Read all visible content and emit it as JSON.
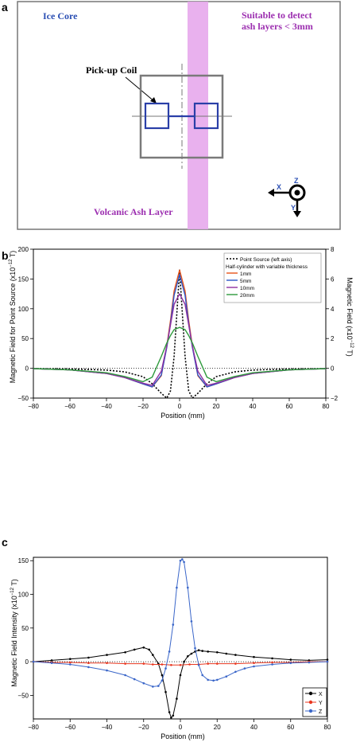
{
  "panel_labels": {
    "a": "a",
    "b": "b",
    "c": "c"
  },
  "diagram": {
    "ice_core_label": "Ice Core",
    "detect_note_line1": "Suitable to detect",
    "detect_note_line2": "ash layers < 3mm",
    "pickup_coil_label": "Pick-up Coil",
    "ash_layer_label": "Volcanic Ash Layer",
    "axis_x": "X",
    "axis_y": "Y",
    "axis_z": "Z",
    "colors": {
      "ice_core": "#2b4fb3",
      "ash": "#9c2fb0",
      "ash_band": "#e7a9ec",
      "coil": "#2a3fa8",
      "frame": "#777777"
    }
  },
  "chart_data": [
    {
      "type": "line",
      "xlabel": "Position (mm)",
      "ylabel_left": "Magnetic Field for Point Source (x10",
      "ylabel_left_exp": "−12",
      "ylabel_left_unit": "T)",
      "ylabel_right": "Magnetic Field (x10",
      "ylabel_right_exp": "−12",
      "ylabel_right_unit": "T)",
      "xlim": [
        -80,
        80
      ],
      "ylim_left": [
        -50,
        200
      ],
      "ylim_right": [
        -2,
        8
      ],
      "xticks": [
        "−80",
        "−60",
        "−40",
        "−20",
        "0",
        "20",
        "40",
        "60",
        "80"
      ],
      "yticks_left": [
        "−50",
        "0",
        "50",
        "100",
        "150",
        "200"
      ],
      "yticks_right": [
        "−2",
        "0",
        "2",
        "4",
        "6",
        "8"
      ],
      "legend": {
        "point_source": "Point Source (left axis)",
        "half_cylinder_header": "Half-cylinder with variable thickness",
        "placement": "top-right"
      },
      "series": [
        {
          "name": "Point Source (left axis)",
          "axis": "left",
          "color": "#000000",
          "style": "dotted",
          "x": [
            -80,
            -60,
            -40,
            -30,
            -20,
            -15,
            -10,
            -7,
            -5,
            -3,
            0,
            3,
            5,
            7,
            10,
            15,
            20,
            30,
            40,
            60,
            80
          ],
          "y": [
            -0.5,
            -1,
            -3,
            -6,
            -14,
            -26,
            -42,
            -50,
            -38,
            20,
            165,
            20,
            -38,
            -50,
            -42,
            -26,
            -14,
            -6,
            -3,
            -1,
            -0.5
          ]
        },
        {
          "name": "1mm",
          "axis": "right",
          "color": "#e8541a",
          "style": "solid",
          "x": [
            -80,
            -60,
            -40,
            -30,
            -20,
            -15,
            -10,
            -7,
            -5,
            -3,
            0,
            3,
            5,
            7,
            10,
            15,
            20,
            30,
            40,
            60,
            80
          ],
          "y": [
            -0.02,
            -0.1,
            -0.35,
            -0.62,
            -1.05,
            -1.25,
            -0.5,
            1.5,
            3.2,
            5.2,
            6.6,
            5.2,
            3.2,
            1.5,
            -0.5,
            -1.25,
            -1.05,
            -0.62,
            -0.35,
            -0.1,
            -0.02
          ]
        },
        {
          "name": "5mm",
          "axis": "right",
          "color": "#2b55c8",
          "style": "solid",
          "x": [
            -80,
            -60,
            -40,
            -30,
            -20,
            -15,
            -10,
            -7,
            -5,
            -3,
            0,
            3,
            5,
            7,
            10,
            15,
            20,
            30,
            40,
            60,
            80
          ],
          "y": [
            -0.02,
            -0.1,
            -0.35,
            -0.62,
            -1.05,
            -1.25,
            -0.45,
            1.4,
            3.0,
            4.9,
            6.3,
            4.9,
            3.0,
            1.4,
            -0.45,
            -1.25,
            -1.05,
            -0.62,
            -0.35,
            -0.1,
            -0.02
          ]
        },
        {
          "name": "10mm",
          "axis": "right",
          "color": "#8e2fa0",
          "style": "solid",
          "x": [
            -80,
            -60,
            -40,
            -30,
            -20,
            -15,
            -10,
            -7,
            -5,
            -3,
            0,
            3,
            5,
            7,
            10,
            15,
            20,
            30,
            40,
            60,
            80
          ],
          "y": [
            -0.02,
            -0.1,
            -0.35,
            -0.62,
            -1.0,
            -1.15,
            -0.2,
            1.5,
            2.9,
            4.3,
            5.0,
            4.3,
            2.9,
            1.5,
            -0.2,
            -1.15,
            -1.0,
            -0.62,
            -0.35,
            -0.1,
            -0.02
          ]
        },
        {
          "name": "20mm",
          "axis": "right",
          "color": "#2e9a3c",
          "style": "solid",
          "x": [
            -80,
            -60,
            -40,
            -30,
            -20,
            -15,
            -10,
            -7,
            -5,
            -3,
            0,
            3,
            5,
            7,
            10,
            15,
            20,
            30,
            40,
            60,
            80
          ],
          "y": [
            -0.02,
            -0.1,
            -0.3,
            -0.55,
            -0.9,
            -0.6,
            0.8,
            1.7,
            2.2,
            2.6,
            2.75,
            2.6,
            2.2,
            1.7,
            0.8,
            -0.6,
            -0.9,
            -0.55,
            -0.3,
            -0.1,
            -0.02
          ]
        }
      ]
    },
    {
      "type": "line",
      "xlabel": "Position (mm)",
      "ylabel": "Magnetic Field Intensity (x10",
      "ylabel_exp": "−12",
      "ylabel_unit": "T)",
      "xlim": [
        -80,
        80
      ],
      "ylim": [
        -85,
        155
      ],
      "xticks": [
        "−80",
        "−60",
        "−40",
        "−20",
        "0",
        "20",
        "40",
        "60",
        "80"
      ],
      "yticks": [
        "−50",
        "0",
        "50",
        "100",
        "150"
      ],
      "legend_placement": "bottom-right",
      "series": [
        {
          "name": "X",
          "color": "#000000",
          "marker": "dot",
          "x": [
            -80,
            -70,
            -60,
            -50,
            -40,
            -30,
            -25,
            -20,
            -17,
            -15,
            -12,
            -10,
            -8,
            -6,
            -5,
            -4,
            -2,
            0,
            2,
            4,
            6,
            8,
            10,
            12,
            15,
            20,
            25,
            30,
            40,
            50,
            60,
            70,
            80
          ],
          "y": [
            0,
            2,
            4,
            6,
            10,
            14,
            18,
            21,
            18,
            10,
            -3,
            -20,
            -45,
            -75,
            -83,
            -80,
            -55,
            -20,
            0,
            8,
            12,
            15,
            17,
            16,
            15,
            14,
            12,
            10,
            7,
            5,
            3,
            2,
            3
          ]
        },
        {
          "name": "Y",
          "color": "#e8361f",
          "marker": "dot",
          "x": [
            -80,
            -70,
            -60,
            -50,
            -40,
            -30,
            -20,
            -15,
            -10,
            -5,
            0,
            5,
            10,
            15,
            20,
            30,
            40,
            50,
            60,
            70,
            80
          ],
          "y": [
            0,
            -1,
            -1,
            -2,
            -2,
            -3,
            -3,
            -4,
            -4,
            -5,
            -5,
            -4,
            -4,
            -3,
            -3,
            -3,
            -2,
            -1,
            -1,
            0,
            0
          ]
        },
        {
          "name": "Z",
          "color": "#3a66c9",
          "marker": "dot",
          "x": [
            -80,
            -70,
            -60,
            -50,
            -40,
            -30,
            -25,
            -20,
            -15,
            -12,
            -10,
            -8,
            -6,
            -4,
            -2,
            0,
            1,
            2,
            4,
            6,
            8,
            10,
            12,
            15,
            18,
            20,
            25,
            30,
            35,
            40,
            50,
            60,
            70,
            80
          ],
          "y": [
            0,
            -2,
            -4,
            -8,
            -13,
            -20,
            -26,
            -32,
            -37,
            -36,
            -28,
            -10,
            15,
            55,
            110,
            150,
            152,
            148,
            110,
            60,
            20,
            -5,
            -20,
            -27,
            -28,
            -27,
            -22,
            -15,
            -10,
            -7,
            -4,
            -2,
            -1,
            0
          ]
        }
      ]
    }
  ]
}
